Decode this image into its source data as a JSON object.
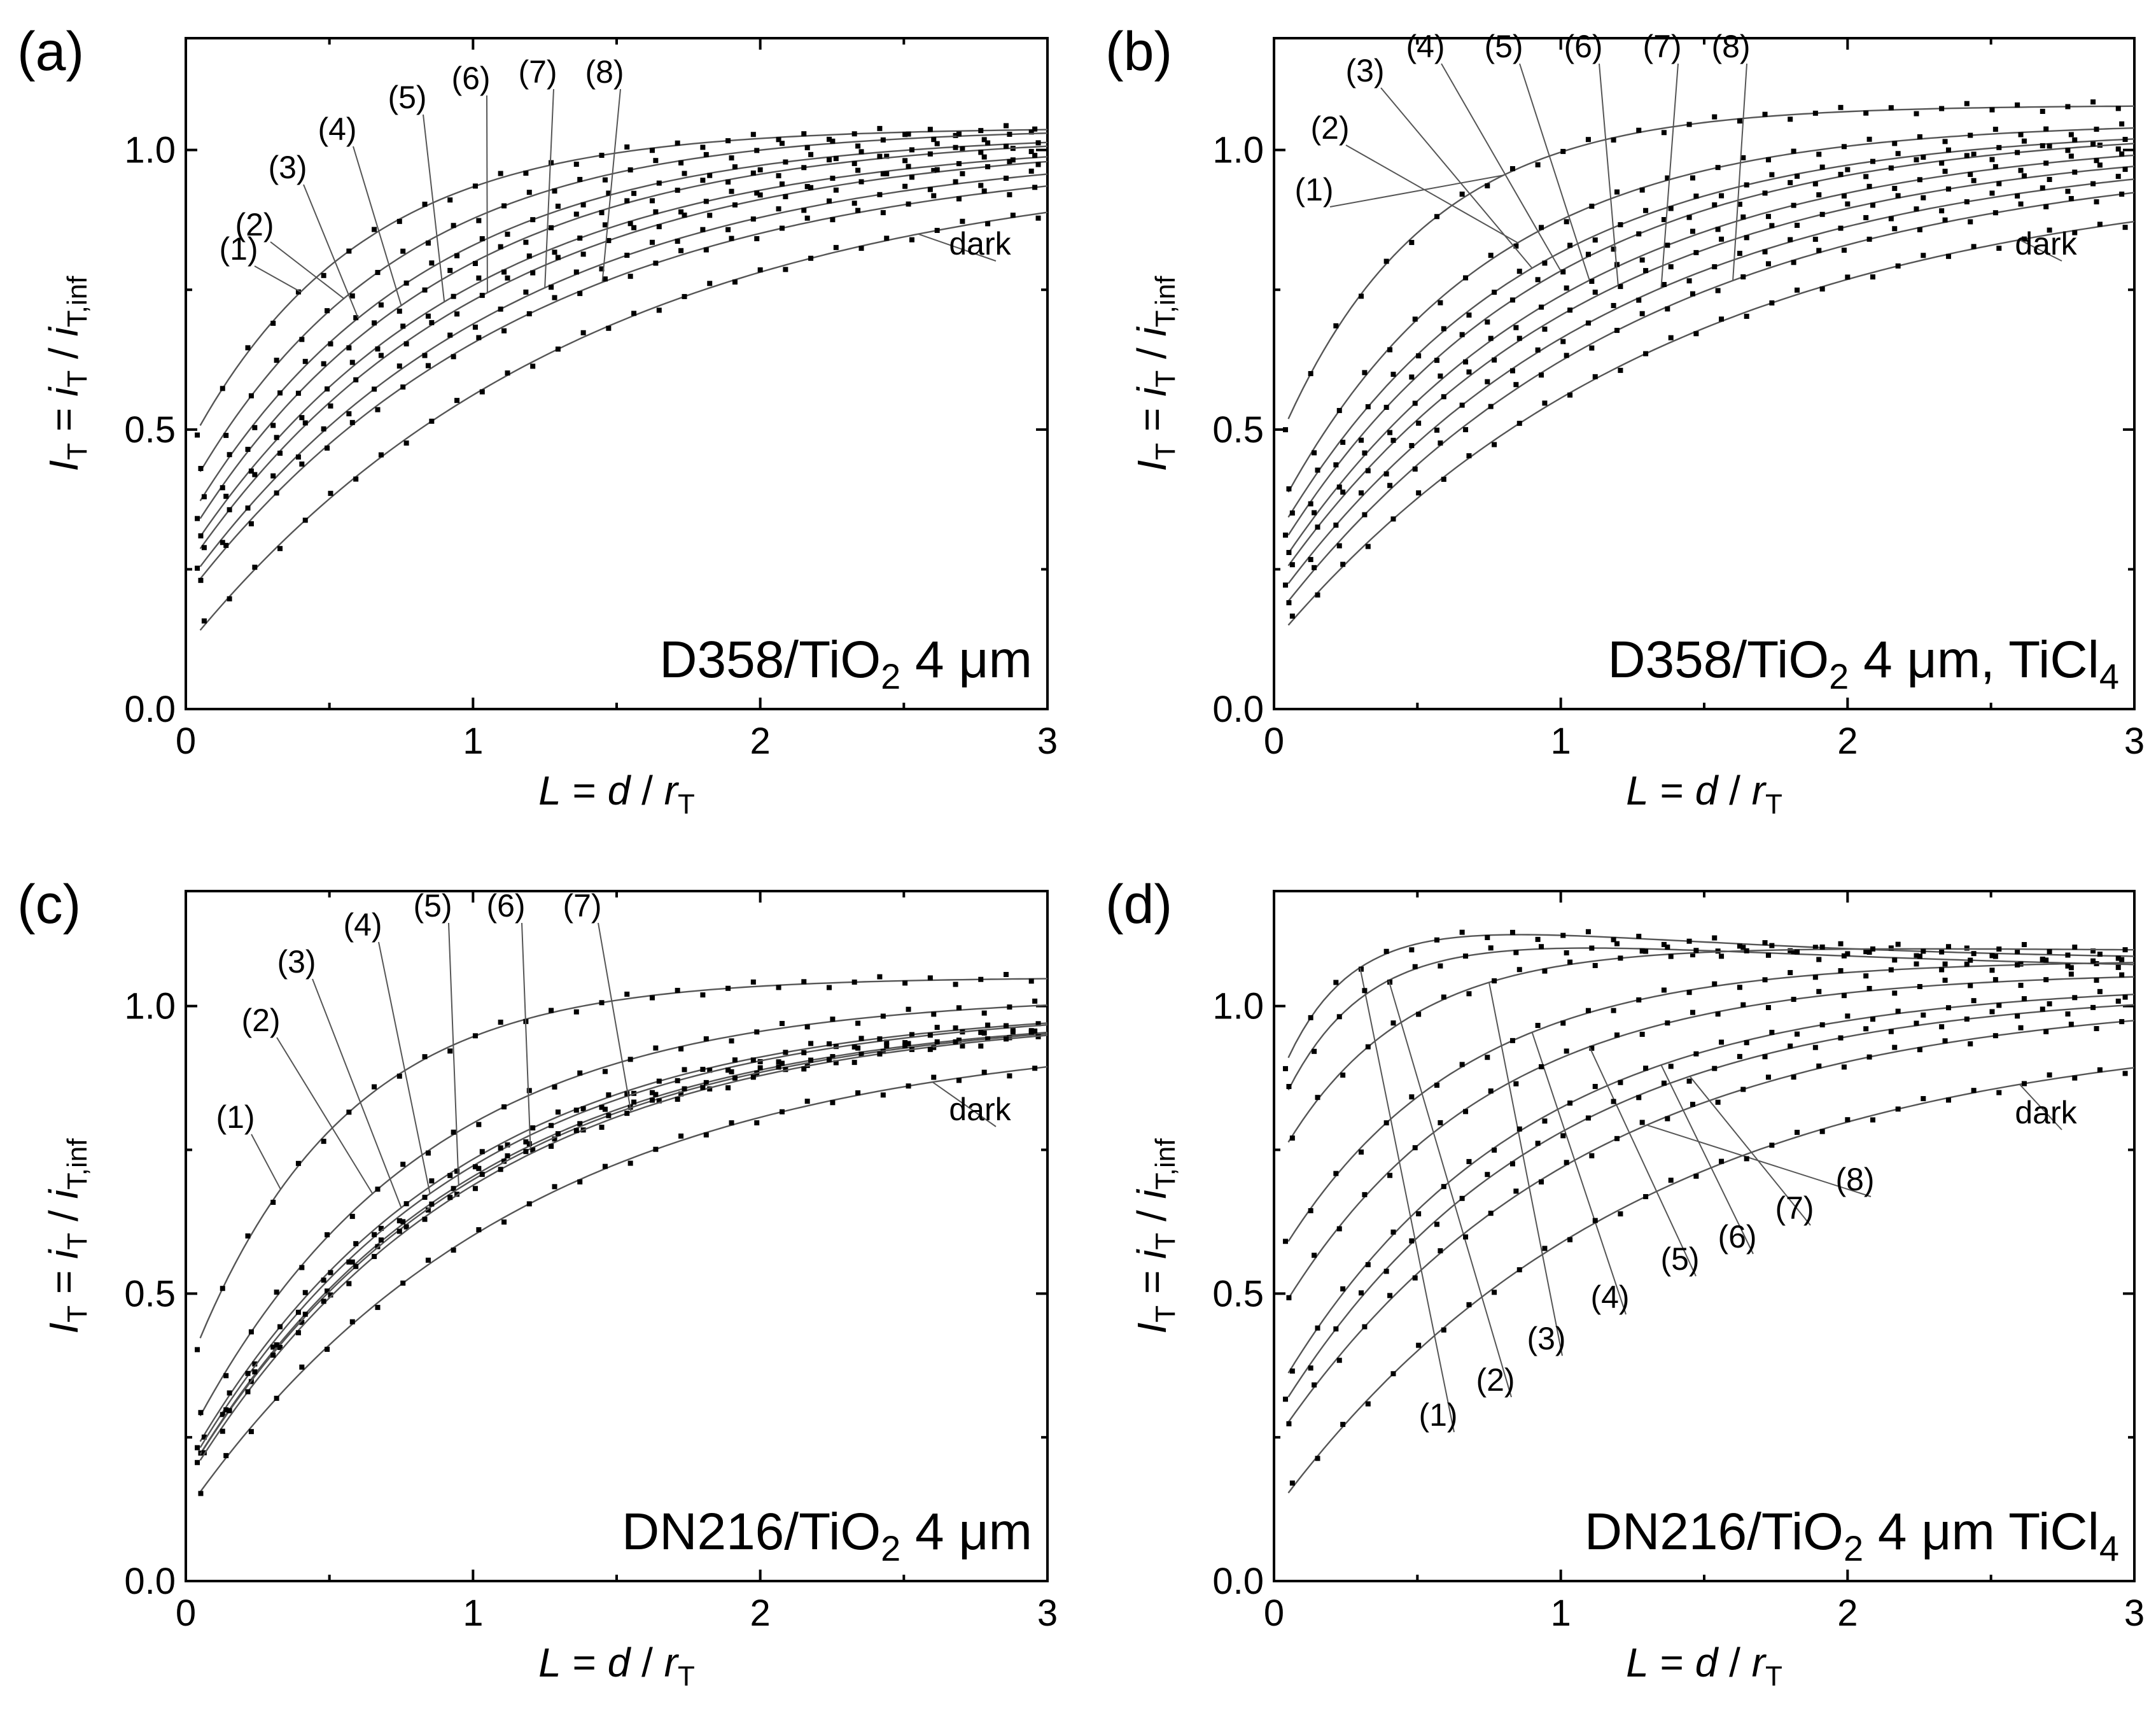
{
  "chart_data": [
    {
      "id": "a",
      "type": "scatter",
      "panel_label": "(a)",
      "sample": {
        "main": "D358/TiO",
        "sub": "2",
        "rest": " 4 μm"
      },
      "xlabel": "L = d / r_T",
      "ylabel": "I_T = i_T / i_T,inf",
      "xlim": [
        0,
        3
      ],
      "ylim": [
        0,
        1.2
      ],
      "xticks": [
        "0",
        "1",
        "2",
        "3"
      ],
      "yticks": [
        "0.0",
        "0.5",
        "1.0"
      ],
      "series": [
        {
          "name": "(1)",
          "y0": 0.46,
          "yinf": 1.04,
          "k": 1.7
        },
        {
          "name": "(2)",
          "y0": 0.38,
          "yinf": 1.04,
          "k": 1.4
        },
        {
          "name": "(3)",
          "y0": 0.33,
          "yinf": 1.03,
          "k": 1.25
        },
        {
          "name": "(4)",
          "y0": 0.3,
          "yinf": 1.03,
          "k": 1.15
        },
        {
          "name": "(5)",
          "y0": 0.27,
          "yinf": 1.02,
          "k": 1.05
        },
        {
          "name": "(6)",
          "y0": 0.25,
          "yinf": 1.02,
          "k": 0.98
        },
        {
          "name": "(7)",
          "y0": 0.22,
          "yinf": 1.01,
          "k": 0.9
        },
        {
          "name": "(8)",
          "y0": 0.2,
          "yinf": 1.0,
          "k": 0.84
        },
        {
          "name": "dark",
          "y0": 0.11,
          "yinf": 0.99,
          "k": 0.72
        }
      ]
    },
    {
      "id": "b",
      "type": "scatter",
      "panel_label": "(b)",
      "sample": {
        "main": "D358/TiO",
        "sub": "2",
        "rest": " 4 μm, TiCl",
        "sub2": "4"
      },
      "xlabel": "L = d / r_T",
      "ylabel": "I_T = i_T / i_T,inf",
      "xlim": [
        0,
        3
      ],
      "ylim": [
        0,
        1.2
      ],
      "xticks": [
        "0",
        "1",
        "2",
        "3"
      ],
      "yticks": [
        "0.0",
        "0.5",
        "1.0"
      ],
      "series": [
        {
          "name": "(1)",
          "y0": 0.46,
          "yinf": 1.08,
          "k": 2.0
        },
        {
          "name": "(2)",
          "y0": 0.34,
          "yinf": 1.05,
          "k": 1.4
        },
        {
          "name": "(3)",
          "y0": 0.3,
          "yinf": 1.04,
          "k": 1.2
        },
        {
          "name": "(4)",
          "y0": 0.27,
          "yinf": 1.04,
          "k": 1.1
        },
        {
          "name": "(5)",
          "y0": 0.24,
          "yinf": 1.03,
          "k": 1.0
        },
        {
          "name": "(6)",
          "y0": 0.22,
          "yinf": 1.02,
          "k": 0.93
        },
        {
          "name": "(7)",
          "y0": 0.19,
          "yinf": 1.01,
          "k": 0.86
        },
        {
          "name": "(8)",
          "y0": 0.16,
          "yinf": 1.0,
          "k": 0.8
        },
        {
          "name": "dark",
          "y0": 0.12,
          "yinf": 0.97,
          "k": 0.72
        }
      ]
    },
    {
      "id": "c",
      "type": "scatter",
      "panel_label": "(c)",
      "sample": {
        "main": "DN216/TiO",
        "sub": "2",
        "rest": " 4 μm"
      },
      "xlabel": "L = d / r_T",
      "ylabel": "I_T = i_T / i_T,inf",
      "xlim": [
        0,
        3
      ],
      "ylim": [
        0,
        1.2
      ],
      "xticks": [
        "0",
        "1",
        "2",
        "3"
      ],
      "yticks": [
        "0.0",
        "0.5",
        "1.0"
      ],
      "series": [
        {
          "name": "(1)",
          "y0": 0.36,
          "yinf": 1.05,
          "k": 1.9
        },
        {
          "name": "(2)",
          "y0": 0.24,
          "yinf": 1.02,
          "k": 1.25
        },
        {
          "name": "(3)",
          "y0": 0.2,
          "yinf": 1.0,
          "k": 1.1
        },
        {
          "name": "(4)",
          "y0": 0.19,
          "yinf": 1.0,
          "k": 1.07
        },
        {
          "name": "(5)",
          "y0": 0.18,
          "yinf": 0.99,
          "k": 1.04
        },
        {
          "name": "(6)",
          "y0": 0.18,
          "yinf": 0.99,
          "k": 1.02
        },
        {
          "name": "(7)",
          "y0": 0.17,
          "yinf": 0.99,
          "k": 1.0
        },
        {
          "name": "dark",
          "y0": 0.12,
          "yinf": 0.96,
          "k": 0.85
        }
      ]
    },
    {
      "id": "d",
      "type": "scatter",
      "panel_label": "(d)",
      "sample": {
        "main": "DN216/TiO",
        "sub": "2",
        "rest": " 4 μm TiCl",
        "sub2": "4"
      },
      "xlabel": "L = d / r_T",
      "ylabel": "I_T = i_T / i_T,inf",
      "xlim": [
        0,
        3
      ],
      "ylim": [
        0,
        1.2
      ],
      "xticks": [
        "0",
        "1",
        "2",
        "3"
      ],
      "yticks": [
        "0.0",
        "0.5",
        "1.0"
      ],
      "series": [
        {
          "name": "(1)",
          "y0": 0.85,
          "yinf": 1.08,
          "k": 5.0,
          "bump": 0.2,
          "kb": 1.5
        },
        {
          "name": "(2)",
          "y0": 0.8,
          "yinf": 1.06,
          "k": 4.0,
          "bump": 0.15,
          "kb": 1.2
        },
        {
          "name": "(3)",
          "y0": 0.72,
          "yinf": 1.09,
          "k": 2.4,
          "bump": 0.03,
          "kb": 0.8
        },
        {
          "name": "(4)",
          "y0": 0.55,
          "yinf": 1.08,
          "k": 1.6
        },
        {
          "name": "(5)",
          "y0": 0.45,
          "yinf": 1.06,
          "k": 1.4
        },
        {
          "name": "(6)",
          "y0": 0.32,
          "yinf": 1.04,
          "k": 1.2
        },
        {
          "name": "(7)",
          "y0": 0.28,
          "yinf": 1.03,
          "k": 1.1
        },
        {
          "name": "(8)",
          "y0": 0.24,
          "yinf": 1.02,
          "k": 0.95
        },
        {
          "name": "dark",
          "y0": 0.12,
          "yinf": 0.97,
          "k": 0.8
        }
      ]
    }
  ]
}
